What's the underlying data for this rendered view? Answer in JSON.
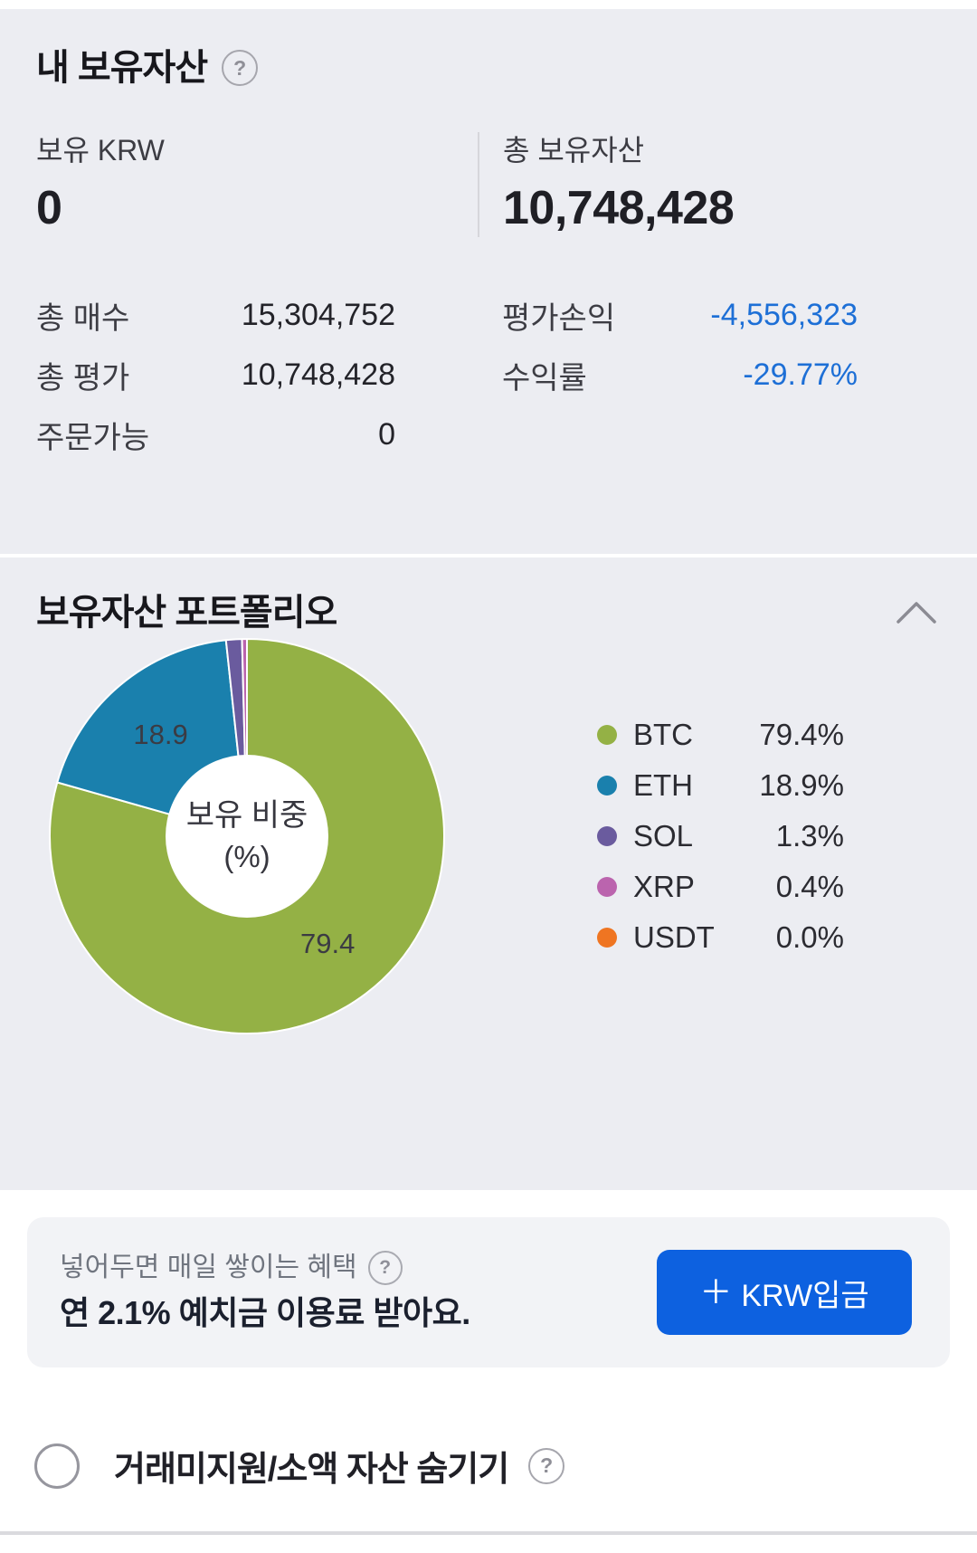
{
  "colors": {
    "panel_bg": "#ecedf2",
    "negative_blue": "#1d6fd6",
    "button_blue": "#0d61e0",
    "pie_label": "#3b3b43"
  },
  "assets_panel": {
    "title": "내 보유자산",
    "help_icon": "?",
    "krw": {
      "label": "보유 KRW",
      "value": "0"
    },
    "total": {
      "label": "총 보유자산",
      "value": "10,748,428"
    },
    "stats": {
      "buy": {
        "label": "총 매수",
        "value": "15,304,752"
      },
      "pl": {
        "label": "평가손익",
        "value": "-4,556,323"
      },
      "valuation": {
        "label": "총 평가",
        "value": "10,748,428"
      },
      "ror": {
        "label": "수익률",
        "value": "-29.77%"
      },
      "orderable": {
        "label": "주문가능",
        "value": "0"
      }
    }
  },
  "portfolio": {
    "title": "보유자산 포트폴리오",
    "legend": [
      {
        "symbol": "BTC",
        "percent": "79.4%",
        "color": "#94b145"
      },
      {
        "symbol": "ETH",
        "percent": "18.9%",
        "color": "#1a80ad"
      },
      {
        "symbol": "SOL",
        "percent": "1.3%",
        "color": "#6a5b9e"
      },
      {
        "symbol": "XRP",
        "percent": "0.4%",
        "color": "#bb64ae"
      },
      {
        "symbol": "USDT",
        "percent": "0.0%",
        "color": "#ef7522"
      }
    ]
  },
  "chart_data": {
    "type": "pie",
    "donut": true,
    "title": "보유자산 포트폴리오",
    "categories": [
      "BTC",
      "ETH",
      "SOL",
      "XRP",
      "USDT"
    ],
    "values": [
      79.4,
      18.9,
      1.3,
      0.4,
      0.0
    ],
    "colors": [
      "#94b145",
      "#1a80ad",
      "#6a5b9e",
      "#bb64ae",
      "#ef7522"
    ],
    "center_text": [
      "보유 비중",
      "(%)"
    ],
    "slice_labels": [
      "79.4",
      "18.9"
    ],
    "start_angle_deg": 0,
    "direction": "clockwise",
    "legend_position": "right"
  },
  "banner": {
    "line1": "넣어두면 매일 쌓이는 혜택",
    "help_icon": "?",
    "line2": "연 2.1% 예치금 이용료 받아요.",
    "button_plus": "＋",
    "button_label": "KRW입금"
  },
  "footer": {
    "hide_label": "거래미지원/소액 자산 숨기기",
    "help_icon": "?"
  }
}
